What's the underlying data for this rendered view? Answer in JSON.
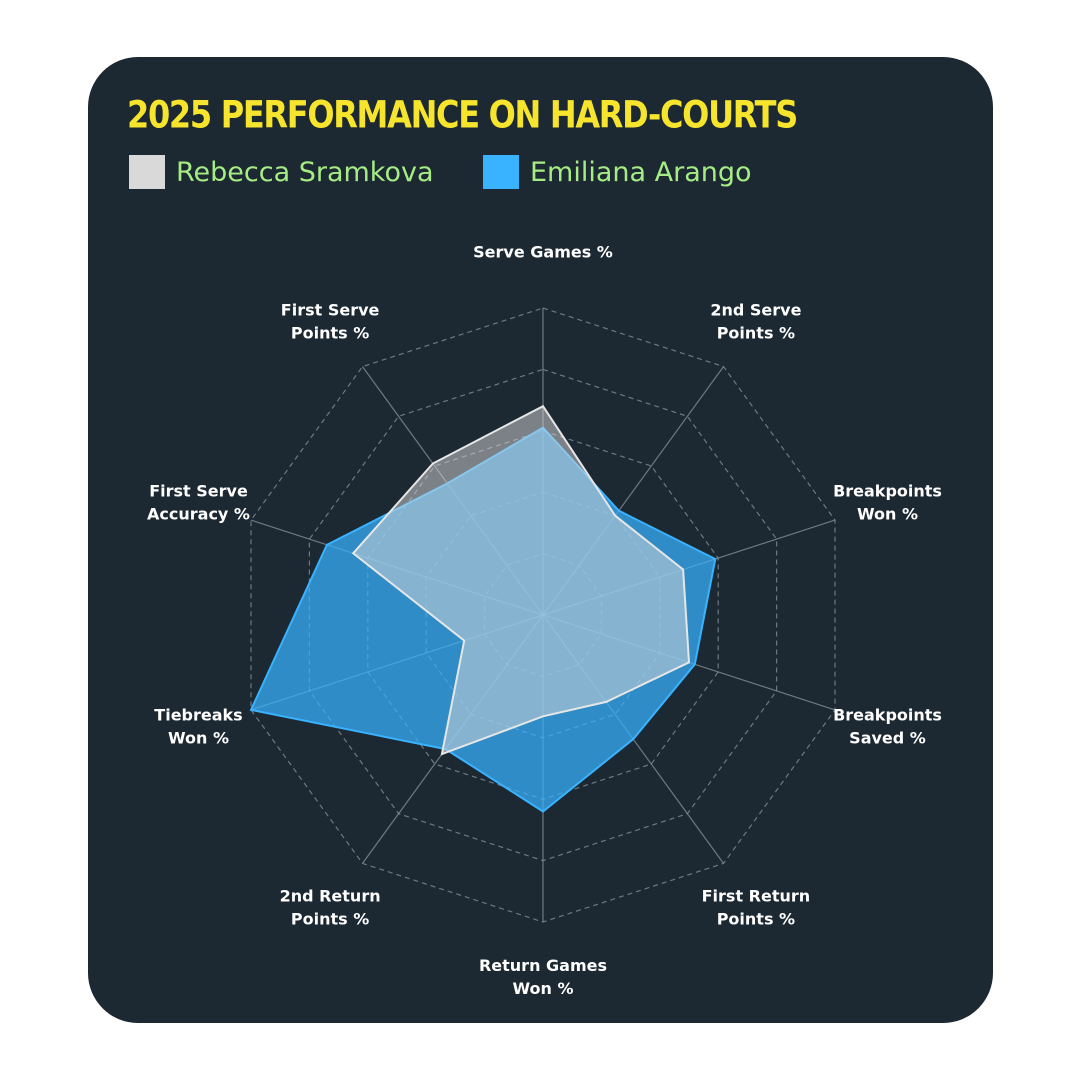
{
  "title": "2025 PERFORMANCE ON HARD-COURTS",
  "colors": {
    "background": "#1c2832",
    "title": "#f7e52d",
    "legend_text": "#a6ec84",
    "grid": "#8a949c",
    "player1": "#d9d9d9",
    "player2": "#39b3ff"
  },
  "chart_data": {
    "type": "radar",
    "title": "2025 PERFORMANCE ON HARD-COURTS",
    "rlim": [
      0,
      1
    ],
    "grid_levels": 5,
    "grid_style": "dashed",
    "legend_position": "top-left",
    "axes": [
      [
        "Serve Games %"
      ],
      [
        "2nd Serve",
        "Points %"
      ],
      [
        "Breakpoints",
        "Won %"
      ],
      [
        "Breakpoints",
        "Saved %"
      ],
      [
        "First Return",
        "Points %"
      ],
      [
        "Return Games",
        "Won %"
      ],
      [
        "2nd Return",
        "Points %"
      ],
      [
        "Tiebreaks",
        "Won %"
      ],
      [
        "First Serve",
        "Accuracy %"
      ],
      [
        "First Serve",
        "Points %"
      ]
    ],
    "series": [
      {
        "name": "Rebecca Sramkova",
        "color": "#d9d9d9",
        "values": [
          0.68,
          0.4,
          0.48,
          0.5,
          0.35,
          0.33,
          0.56,
          0.27,
          0.65,
          0.61
        ]
      },
      {
        "name": "Emiliana Arango",
        "color": "#39b3ff",
        "values": [
          0.61,
          0.42,
          0.59,
          0.52,
          0.5,
          0.64,
          0.54,
          1.0,
          0.74,
          0.53
        ]
      }
    ]
  }
}
